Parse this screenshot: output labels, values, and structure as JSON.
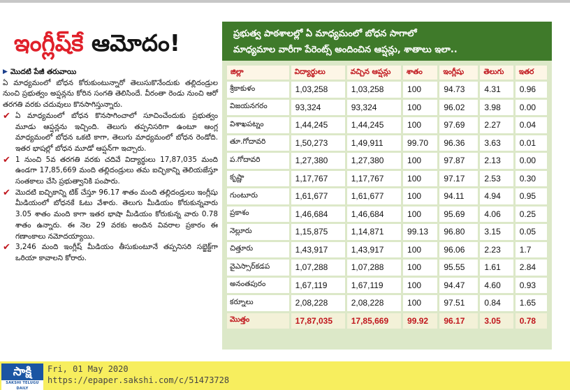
{
  "headline": {
    "red": "ఇంగ్లీష్‌కే",
    "black": " ఆమోదం!"
  },
  "article": {
    "byline": "మొదటి పేజీ తరువాయి",
    "intro": "ఏ మాధ్యమంలో బోధన కోరుకుంటున్నారో తెలుసుకొనేందుకు తల్లిదండ్రుల నుంచి ప్రభుత్వం అప్షన్లను కోరిన సంగతి తెలిసిందే. వీరంతా రెండు నుంచి ఆరో తరగతి వరకు చదువులు కొనసాగిస్తున్నారు.",
    "points": [
      "ఏ మాధ్యమంలో బోధన కొనసాగించాలో సూచించేందుకు ప్రభుత్వం మూడు ఆప్షన్లను ఇచ్చింది. తెలుగు తప్పనిసరిగా ఉంటూ ఆంగ్ల మాధ్యమంలో బోధన ఒకటి కాగా, తెలుగు మాధ్యమంలో బోధన రెండోది. ఇతర భాషల్లో బోధన మూడో ఆప్షన్‌గా ఇచ్చారు.",
      "1 నుంచి 5వ తరగతి వరకు చదివే విద్యార్థులు 17,87,035 మంది ఉండగా 17,85,669 మంది తల్లిదండ్రులు తమ ఐచ్ఛికాన్ని తెలియజేస్తూ సంతకాలు చేసి ప్రభుత్వానికి పంపారు.",
      "మొదటి ఐచ్ఛికాన్ని టిక్ చేస్తూ 96.17 శాతం మంది తల్లిదండ్రులు ఇంగ్లీషు మీడియంలో బోధనకే ఓటు వేశారు. తెలుగు మీడియం కోరుకున్నవారు 3.05 శాతం మంది కాగా ఇతర భాషా మీడియం కోరుకున్న వారు 0.78 శాతం ఉన్నారు. ఈ నెల 29 వరకు అందిన వివరాల ప్రకారం ఈ గణాంకాలు నమోదయ్యాయి.",
      "3,246 మంది ఇంగ్లీష్ మీడియం తీసుకుంటూనే తప్పనిసరి సబ్జెక్ట్‌గా ఒరియా కావాలని కోరారు."
    ]
  },
  "panel": {
    "title_line1": "ప్రభుత్వ పాఠశాలల్లో ఏ మాధ్యమంలో బోధన సాగాలో",
    "title_line2": "మాధ్యమాల వారీగా పేరెంట్స్ అందించిన ఆప్షన్లు, శాతాలు ఇలా..",
    "columns": [
      "జిల్లా",
      "విద్యార్థులు",
      "వచ్చిన ఆప్షన్లు",
      "శాతం",
      "ఇంగ్లీషు",
      "తెలుగు",
      "ఇతర"
    ],
    "rows": [
      [
        "శ్రీకాకుళం",
        "1,03,258",
        "1,03,258",
        "100",
        "94.73",
        "4.31",
        "0.96"
      ],
      [
        "విజయనగరం",
        "93,324",
        "93,324",
        "100",
        "96.02",
        "3.98",
        "0.00"
      ],
      [
        "విశాఖపట్నం",
        "1,44,245",
        "1,44,245",
        "100",
        "97.69",
        "2.27",
        "0.04"
      ],
      [
        "తూ.గోదావరి",
        "1,50,273",
        "1,49,911",
        "99.70",
        "96.36",
        "3.63",
        "0.01"
      ],
      [
        "ప.గోదావరి",
        "1,27,380",
        "1,27,380",
        "100",
        "97.87",
        "2.13",
        "0.00"
      ],
      [
        "కృష్ణా",
        "1,17,767",
        "1,17,767",
        "100",
        "97.17",
        "2.53",
        "0.30"
      ],
      [
        "గుంటూరు",
        "1,61,677",
        "1,61,677",
        "100",
        "94.11",
        "4.94",
        "0.95"
      ],
      [
        "ప్రకాశం",
        "1,46,684",
        "1,46,684",
        "100",
        "95.69",
        "4.06",
        "0.25"
      ],
      [
        "నెల్లూరు",
        "1,15,875",
        "1,14,871",
        "99.13",
        "96.80",
        "3.15",
        "0.05"
      ],
      [
        "చిత్తూరు",
        "1,43,917",
        "1,43,917",
        "100",
        "96.06",
        "2.23",
        "1.7"
      ],
      [
        "వైఎస్సార్‌కడప",
        "1,07,288",
        "1,07,288",
        "100",
        "95.55",
        "1.61",
        "2.84"
      ],
      [
        "అనంతపురం",
        "1,67,119",
        "1,67,119",
        "100",
        "94.47",
        "4.60",
        "0.93"
      ],
      [
        "కర్నూలు",
        "2,08,228",
        "2,08,228",
        "100",
        "97.51",
        "0.84",
        "1.65"
      ]
    ],
    "total": [
      "మొత్తం",
      "17,87,035",
      "17,85,669",
      "99.92",
      "96.17",
      "3.05",
      "0.78"
    ]
  },
  "footer": {
    "logo_brand": "సాక్షి",
    "logo_sub": "SAKSHI TELUGU DAILY",
    "date": "Fri, 01 May 2020",
    "url": "https://epaper.sakshi.com/c/51473728"
  },
  "colors": {
    "headline_red": "#e0202a",
    "panel_green": "#3f7a2a",
    "panel_bg": "#dce8c8",
    "footer_yellow": "#f7ee5e",
    "logo_blue": "#1b55a3"
  }
}
